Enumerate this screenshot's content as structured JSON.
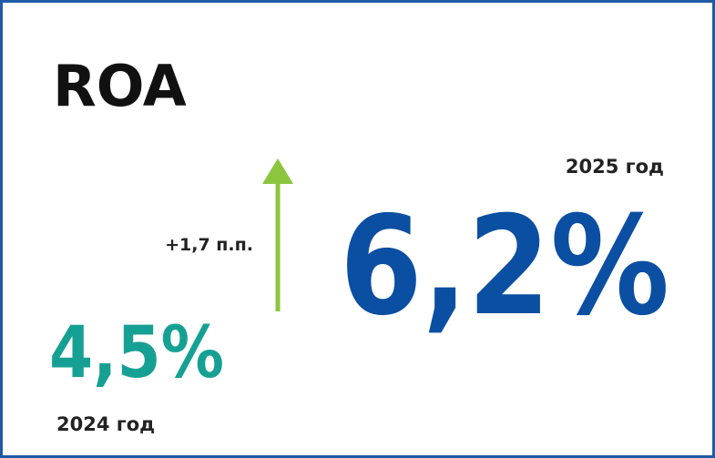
{
  "title": "ROA",
  "current": {
    "period": "2025 год",
    "value": "6,2%"
  },
  "previous": {
    "period": "2024 год",
    "value": "4,5%"
  },
  "change": "+1,7 п.п."
}
